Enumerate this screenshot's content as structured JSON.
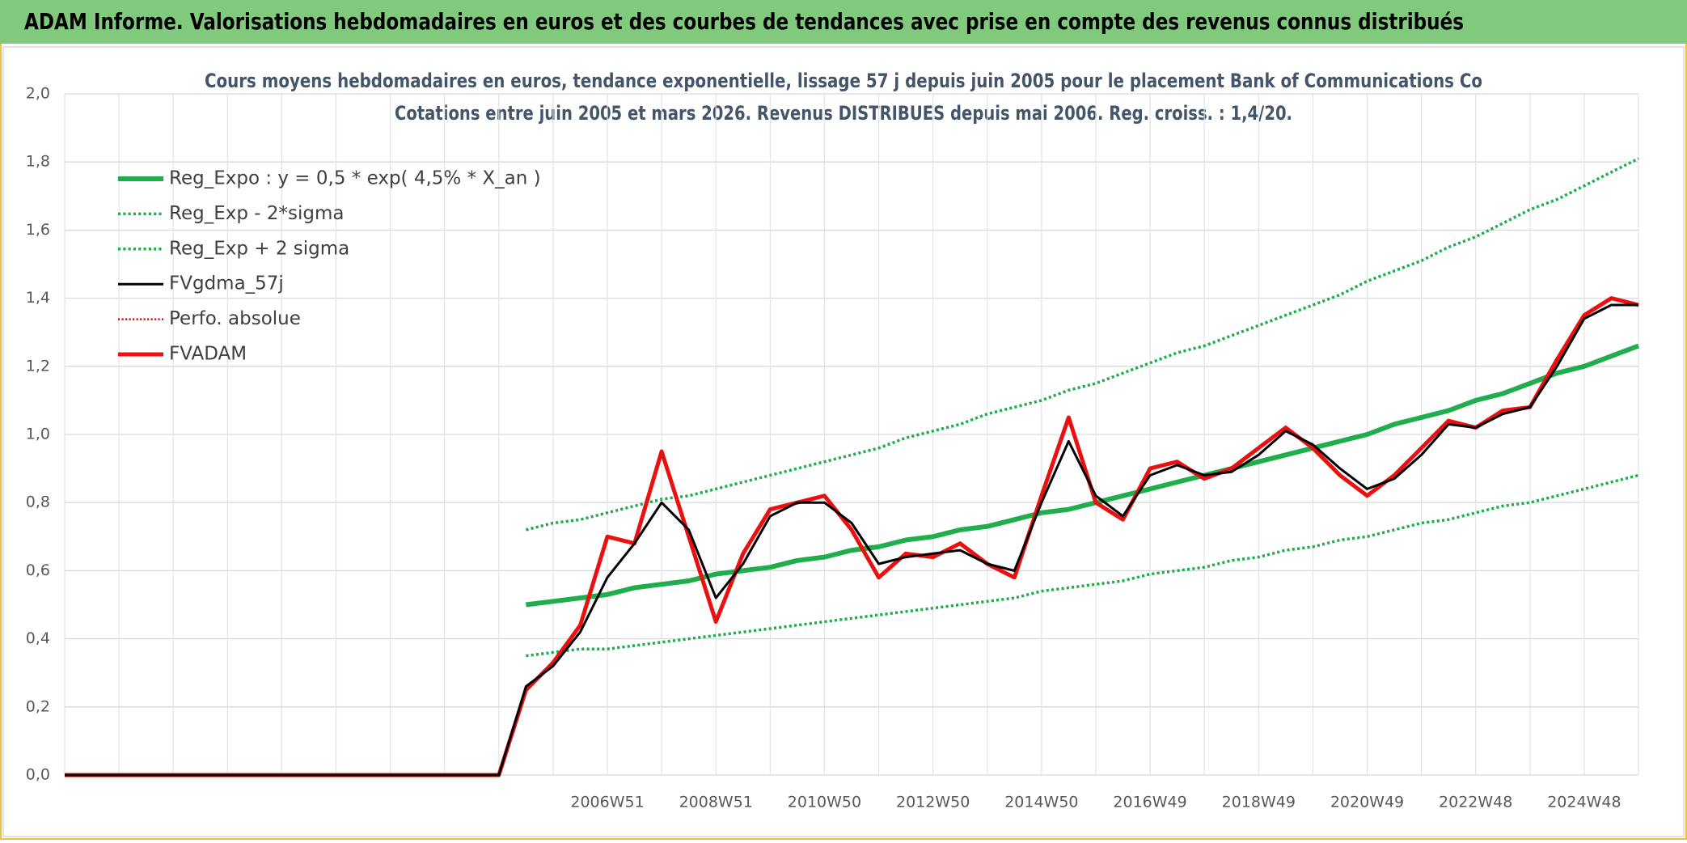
{
  "header": {
    "title": "ADAM Informe. Valorisations hebdomadaires en euros et des courbes de tendances avec prise en compte des revenus connus distribués"
  },
  "chart_data": {
    "type": "line",
    "title": "Cours moyens hebdomadaires en euros, tendance exponentielle, lissage 57 j depuis juin 2005 pour le placement Bank of Communications Co",
    "subtitle": "Cotations entre juin 2005 et mars 2026. Revenus DISTRIBUES depuis mai 2006. Reg. croiss. : 1,4/20.",
    "categories": [
      null,
      null,
      null,
      null,
      null,
      null,
      null,
      null,
      null,
      null,
      null,
      null,
      null,
      null,
      null,
      null,
      null,
      null,
      null,
      null,
      "2006W51",
      null,
      null,
      null,
      "2008W51",
      null,
      null,
      null,
      "2010W50",
      null,
      null,
      null,
      "2012W50",
      null,
      null,
      null,
      "2014W50",
      null,
      null,
      null,
      "2016W49",
      null,
      null,
      null,
      "2018W49",
      null,
      null,
      null,
      "2020W49",
      null,
      null,
      null,
      "2022W48",
      null,
      null,
      null,
      "2024W48",
      null,
      null
    ],
    "ylim": [
      0,
      2
    ],
    "yticks": [
      {
        "value": 0,
        "label": "0,0"
      },
      {
        "value": 0.2,
        "label": "0,2"
      },
      {
        "value": 0.4,
        "label": "0,4"
      },
      {
        "value": 0.6,
        "label": "0,6"
      },
      {
        "value": 0.8,
        "label": "0,8"
      },
      {
        "value": 1,
        "label": "1,0"
      },
      {
        "value": 1.2,
        "label": "1,2"
      },
      {
        "value": 1.4,
        "label": "1,4"
      },
      {
        "value": 1.6,
        "label": "1,6"
      },
      {
        "value": 1.8,
        "label": "1,8"
      },
      {
        "value": 2,
        "label": "2,0"
      }
    ],
    "grid": true,
    "legend": "top-left",
    "series": [
      {
        "name": "Reg_Expo : y = 0,5 * exp( 4,5% *  X_an )",
        "color": "#1fae4b",
        "dash": "solid",
        "width": 6,
        "values": [
          null,
          null,
          null,
          null,
          null,
          null,
          null,
          null,
          null,
          null,
          null,
          null,
          null,
          null,
          null,
          null,
          null,
          0.5,
          0.51,
          0.52,
          0.53,
          0.55,
          0.56,
          0.57,
          0.59,
          0.6,
          0.61,
          0.63,
          0.64,
          0.66,
          0.67,
          0.69,
          0.7,
          0.72,
          0.73,
          0.75,
          0.77,
          0.78,
          0.8,
          0.82,
          0.84,
          0.86,
          0.88,
          0.9,
          0.92,
          0.94,
          0.96,
          0.98,
          1.0,
          1.03,
          1.05,
          1.07,
          1.1,
          1.12,
          1.15,
          1.18,
          1.2,
          1.23,
          1.26
        ]
      },
      {
        "name": "Reg_Exp - 2*sigma",
        "color": "#1fae4b",
        "dash": "dotted",
        "width": 3.5,
        "values": [
          null,
          null,
          null,
          null,
          null,
          null,
          null,
          null,
          null,
          null,
          null,
          null,
          null,
          null,
          null,
          null,
          null,
          0.35,
          0.36,
          0.37,
          0.37,
          0.38,
          0.39,
          0.4,
          0.41,
          0.42,
          0.43,
          0.44,
          0.45,
          0.46,
          0.47,
          0.48,
          0.49,
          0.5,
          0.51,
          0.52,
          0.54,
          0.55,
          0.56,
          0.57,
          0.59,
          0.6,
          0.61,
          0.63,
          0.64,
          0.66,
          0.67,
          0.69,
          0.7,
          0.72,
          0.74,
          0.75,
          0.77,
          0.79,
          0.8,
          0.82,
          0.84,
          0.86,
          0.88
        ]
      },
      {
        "name": "Reg_Exp + 2 sigma",
        "color": "#1fae4b",
        "dash": "dotted",
        "width": 3.5,
        "values": [
          null,
          null,
          null,
          null,
          null,
          null,
          null,
          null,
          null,
          null,
          null,
          null,
          null,
          null,
          null,
          null,
          null,
          0.72,
          0.74,
          0.75,
          0.77,
          0.79,
          0.81,
          0.82,
          0.84,
          0.86,
          0.88,
          0.9,
          0.92,
          0.94,
          0.96,
          0.99,
          1.01,
          1.03,
          1.06,
          1.08,
          1.1,
          1.13,
          1.15,
          1.18,
          1.21,
          1.24,
          1.26,
          1.29,
          1.32,
          1.35,
          1.38,
          1.41,
          1.45,
          1.48,
          1.51,
          1.55,
          1.58,
          1.62,
          1.66,
          1.69,
          1.73,
          1.77,
          1.81
        ]
      },
      {
        "name": "FVgdma_57j",
        "color": "#000000",
        "dash": "solid",
        "width": 3,
        "values": [
          0,
          0,
          0,
          0,
          0,
          0,
          0,
          0,
          0,
          0,
          0,
          0,
          0,
          0,
          0,
          0,
          0,
          0.26,
          0.32,
          0.42,
          0.58,
          0.68,
          0.8,
          0.72,
          0.52,
          0.62,
          0.76,
          0.8,
          0.8,
          0.74,
          0.62,
          0.64,
          0.65,
          0.66,
          0.62,
          0.6,
          0.8,
          0.98,
          0.82,
          0.76,
          0.88,
          0.91,
          0.88,
          0.89,
          0.94,
          1.01,
          0.97,
          0.9,
          0.84,
          0.87,
          0.94,
          1.03,
          1.02,
          1.06,
          1.08,
          1.2,
          1.34,
          1.38,
          1.38
        ]
      },
      {
        "name": "Perfo. absolue",
        "color": "#e01010",
        "dash": "dotted",
        "width": 2.5,
        "values": [
          0,
          0,
          0,
          0,
          0,
          0,
          0,
          0,
          0,
          0,
          0,
          0,
          0,
          0,
          0,
          0,
          0,
          0.25,
          0.33,
          0.44,
          0.7,
          0.68,
          0.95,
          0.7,
          0.45,
          0.65,
          0.78,
          0.8,
          0.82,
          0.72,
          0.58,
          0.65,
          0.64,
          0.68,
          0.62,
          0.58,
          0.82,
          1.05,
          0.8,
          0.75,
          0.9,
          0.92,
          0.87,
          0.9,
          0.96,
          1.02,
          0.96,
          0.88,
          0.82,
          0.88,
          0.96,
          1.04,
          1.02,
          1.07,
          1.08,
          1.22,
          1.35,
          1.4,
          1.38
        ]
      },
      {
        "name": "FVADAM",
        "color": "#ee1111",
        "dash": "solid",
        "width": 5,
        "values": [
          0,
          0,
          0,
          0,
          0,
          0,
          0,
          0,
          0,
          0,
          0,
          0,
          0,
          0,
          0,
          0,
          0,
          0.25,
          0.33,
          0.44,
          0.7,
          0.68,
          0.95,
          0.7,
          0.45,
          0.65,
          0.78,
          0.8,
          0.82,
          0.72,
          0.58,
          0.65,
          0.64,
          0.68,
          0.62,
          0.58,
          0.82,
          1.05,
          0.8,
          0.75,
          0.9,
          0.92,
          0.87,
          0.9,
          0.96,
          1.02,
          0.96,
          0.88,
          0.82,
          0.88,
          0.96,
          1.04,
          1.02,
          1.07,
          1.08,
          1.22,
          1.35,
          1.4,
          1.38
        ]
      }
    ]
  }
}
